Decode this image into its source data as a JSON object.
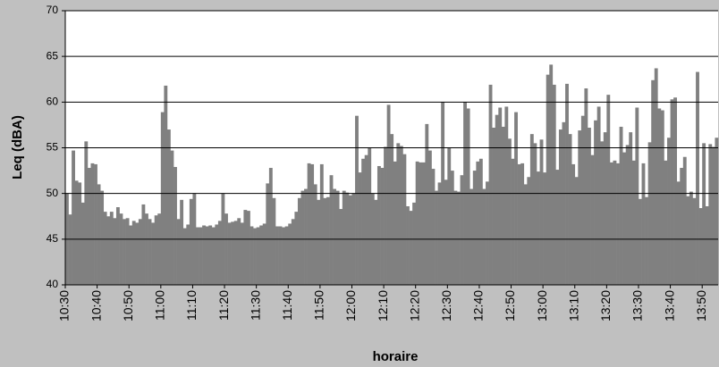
{
  "chart_data": {
    "type": "bar",
    "x_label": "horaire",
    "y_label": "Leq (dBA)",
    "categories": [
      "10:30",
      null,
      null,
      null,
      null,
      null,
      null,
      null,
      null,
      null,
      "10:40",
      null,
      null,
      null,
      null,
      null,
      null,
      null,
      null,
      null,
      "10:50",
      null,
      null,
      null,
      null,
      null,
      null,
      null,
      null,
      null,
      "11:00",
      null,
      null,
      null,
      null,
      null,
      null,
      null,
      null,
      null,
      "11:10",
      null,
      null,
      null,
      null,
      null,
      null,
      null,
      null,
      null,
      "11:20",
      null,
      null,
      null,
      null,
      null,
      null,
      null,
      null,
      null,
      "11:30",
      null,
      null,
      null,
      null,
      null,
      null,
      null,
      null,
      null,
      "11:40",
      null,
      null,
      null,
      null,
      null,
      null,
      null,
      null,
      null,
      "11:50",
      null,
      null,
      null,
      null,
      null,
      null,
      null,
      null,
      null,
      "12:00",
      null,
      null,
      null,
      null,
      null,
      null,
      null,
      null,
      null,
      "12:10",
      null,
      null,
      null,
      null,
      null,
      null,
      null,
      null,
      null,
      "12:20",
      null,
      null,
      null,
      null,
      null,
      null,
      null,
      null,
      null,
      "12:30",
      null,
      null,
      null,
      null,
      null,
      null,
      null,
      null,
      null,
      "12:40",
      null,
      null,
      null,
      null,
      null,
      null,
      null,
      null,
      null,
      "12:50",
      null,
      null,
      null,
      null,
      null,
      null,
      null,
      null,
      null,
      "13:00",
      null,
      null,
      null,
      null,
      null,
      null,
      null,
      null,
      null,
      "13:10",
      null,
      null,
      null,
      null,
      null,
      null,
      null,
      null,
      null,
      "13:20",
      null,
      null,
      null,
      null,
      null,
      null,
      null,
      null,
      null,
      "13:30",
      null,
      null,
      null,
      null,
      null,
      null,
      null,
      null,
      null,
      "13:40",
      null,
      null,
      null,
      null,
      null,
      null,
      null,
      null,
      null,
      "13:50",
      null,
      null,
      null,
      null
    ],
    "values": [
      50,
      47.7,
      54.7,
      51.4,
      51.2,
      49,
      55.7,
      52.8,
      53.3,
      53.2,
      51,
      50.3,
      48,
      47.5,
      48,
      47.3,
      48.5,
      47.8,
      47.2,
      47.3,
      46.5,
      47,
      46.8,
      47.2,
      48.8,
      47.8,
      47.2,
      46.8,
      47.6,
      47.8,
      58.9,
      61.8,
      57,
      54.7,
      52.9,
      47.2,
      49.3,
      46.2,
      46.6,
      49.4,
      50,
      46.3,
      46.3,
      46.5,
      46.4,
      46.5,
      46.3,
      46.6,
      47,
      50,
      47.8,
      46.8,
      46.9,
      47,
      47.3,
      46.8,
      48.2,
      48.1,
      46.4,
      46.2,
      46.3,
      46.5,
      46.7,
      51.1,
      52.8,
      49.5,
      46.4,
      46.4,
      46.3,
      46.4,
      46.7,
      47.2,
      48,
      49.5,
      50.3,
      50.5,
      53.3,
      53.2,
      51,
      49.3,
      53.2,
      49.5,
      49.6,
      52,
      50.5,
      50.3,
      48.3,
      50.3,
      50.1,
      49.8,
      50,
      58.5,
      52.3,
      53.8,
      54.2,
      55,
      50,
      49.3,
      53,
      52.8,
      55.1,
      59.7,
      56.5,
      53.5,
      55.5,
      55.2,
      54.3,
      48.6,
      48.1,
      49,
      53.5,
      53.4,
      53.4,
      57.6,
      54.7,
      52.7,
      50.3,
      51.2,
      60,
      51.5,
      55,
      52.5,
      50.3,
      50.2,
      52,
      60,
      59.3,
      50.5,
      52.5,
      53.5,
      53.8,
      50.5,
      51.3,
      61.9,
      57.2,
      58.6,
      59.4,
      57.3,
      59.5,
      56,
      53.8,
      58.9,
      53.2,
      53.3,
      51,
      51.8,
      56.5,
      55.5,
      52.4,
      55.9,
      52.3,
      63,
      64.1,
      61.9,
      52.6,
      57,
      57.8,
      62,
      56.5,
      53.2,
      51.8,
      56.9,
      58.5,
      61.5,
      57.2,
      54.2,
      58,
      59.5,
      55.7,
      56.7,
      60.8,
      53.4,
      53.6,
      53.3,
      57.3,
      54.5,
      55.3,
      56.7,
      53.6,
      59.4,
      49.4,
      53.3,
      49.6,
      55.6,
      62.4,
      63.7,
      59.3,
      59.1,
      53.6,
      56.1,
      60.3,
      60.5,
      51.3,
      52.8,
      54,
      49.7,
      50.2,
      49.5,
      63.3,
      48.4,
      55.5,
      48.6,
      55.4,
      55.1,
      56.1
    ],
    "color": "#808080",
    "ylim": [
      40,
      70
    ],
    "yticks": [
      40,
      45,
      50,
      55,
      60,
      65,
      70
    ],
    "grid": true
  }
}
